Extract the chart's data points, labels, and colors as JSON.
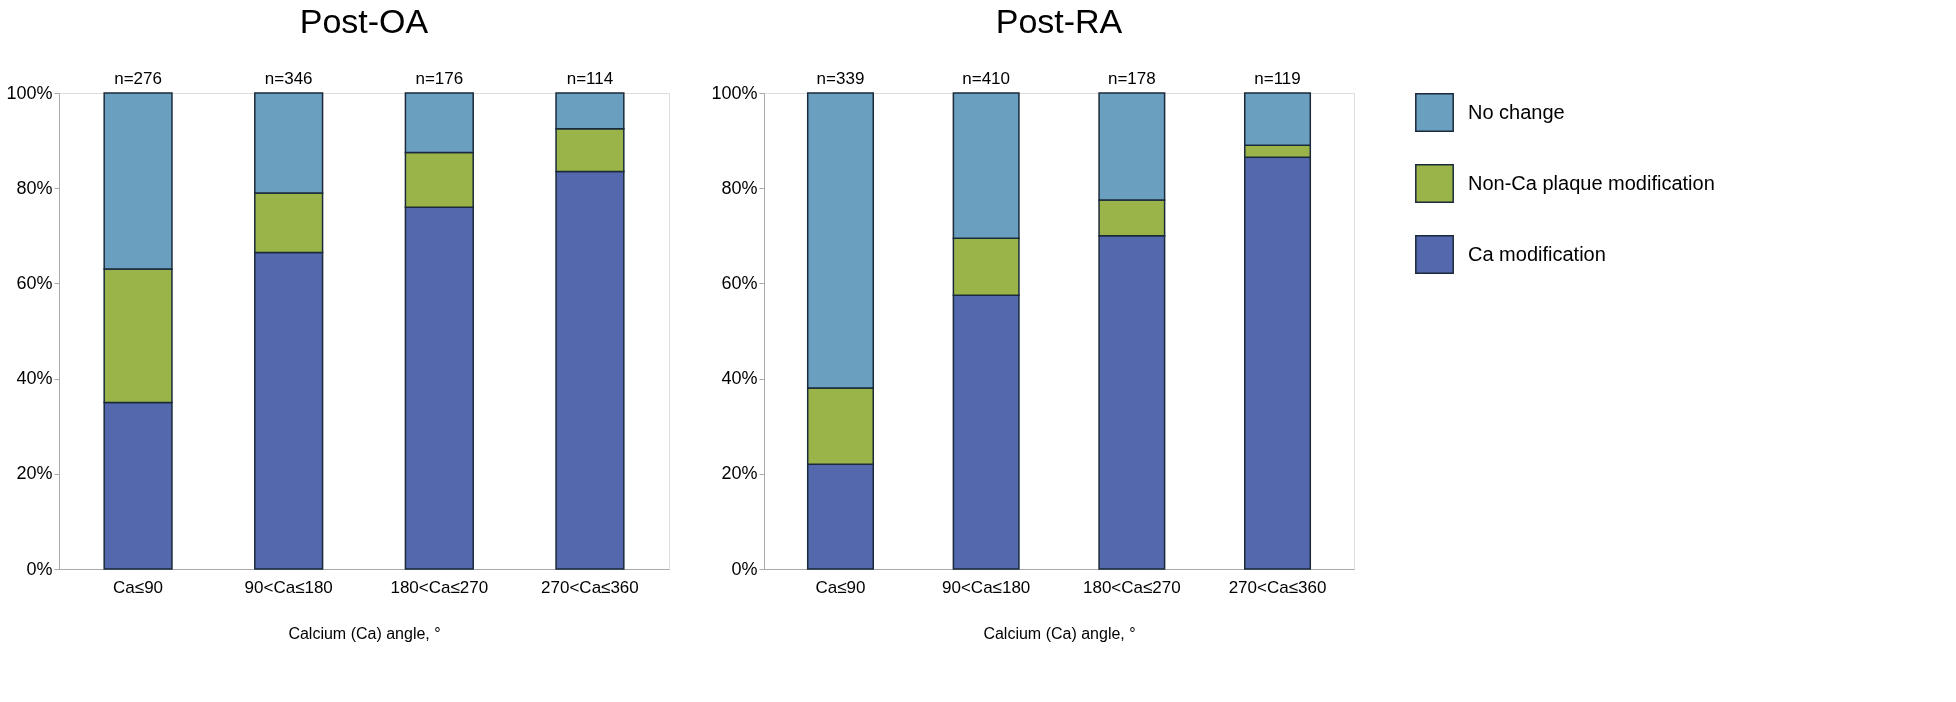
{
  "chart_data": [
    {
      "type": "bar",
      "title": "Post-OA",
      "xlabel": "Calcium (Ca) angle, °",
      "categories": [
        "Ca≤90",
        "90<Ca≤180",
        "180<Ca≤270",
        "270<Ca≤360"
      ],
      "stacked": true,
      "series": [
        {
          "name": "Ca modification",
          "color": "#5468ad",
          "values": [
            35,
            66.5,
            76,
            83.5
          ]
        },
        {
          "name": "Non-Ca plaque modification",
          "color": "#9ab44a",
          "values": [
            28,
            12.5,
            11.5,
            9
          ]
        },
        {
          "name": "No change",
          "color": "#6a9fc0",
          "values": [
            37,
            21,
            12.5,
            7.5
          ]
        }
      ],
      "annotations": [
        {
          "text": "n=276",
          "x": "Ca≤90",
          "y": 100
        },
        {
          "text": "n=346",
          "x": "90<Ca≤180",
          "y": 100
        },
        {
          "text": "n=176",
          "x": "180<Ca≤270",
          "y": 100
        },
        {
          "text": "n=114",
          "x": "270<Ca≤360",
          "y": 100
        }
      ],
      "ylim": [
        0,
        100
      ],
      "yticks": [
        {
          "value": 0,
          "label": "0%"
        },
        {
          "value": 20,
          "label": "20%"
        },
        {
          "value": 40,
          "label": "40%"
        },
        {
          "value": 60,
          "label": "60%"
        },
        {
          "value": 80,
          "label": "80%"
        },
        {
          "value": 100,
          "label": "100%"
        }
      ],
      "grid": false,
      "legend": "right"
    },
    {
      "type": "bar",
      "title": "Post-RA",
      "xlabel": "Calcium (Ca) angle, °",
      "categories": [
        "Ca≤90",
        "90<Ca≤180",
        "180<Ca≤270",
        "270<Ca≤360"
      ],
      "stacked": true,
      "series": [
        {
          "name": "Ca modification",
          "color": "#5468ad",
          "values": [
            22,
            57.5,
            70,
            86.5
          ]
        },
        {
          "name": "Non-Ca plaque modification",
          "color": "#9ab44a",
          "values": [
            16,
            12,
            7.5,
            2.5
          ]
        },
        {
          "name": "No change",
          "color": "#6a9fc0",
          "values": [
            62,
            30.5,
            22.5,
            11
          ]
        }
      ],
      "annotations": [
        {
          "text": "n=339",
          "x": "Ca≤90",
          "y": 100
        },
        {
          "text": "n=410",
          "x": "90<Ca≤180",
          "y": 100
        },
        {
          "text": "n=178",
          "x": "180<Ca≤270",
          "y": 100
        },
        {
          "text": "n=119",
          "x": "270<Ca≤360",
          "y": 100
        }
      ],
      "ylim": [
        0,
        100
      ],
      "yticks": [
        {
          "value": 0,
          "label": "0%"
        },
        {
          "value": 20,
          "label": "20%"
        },
        {
          "value": 40,
          "label": "40%"
        },
        {
          "value": 60,
          "label": "60%"
        },
        {
          "value": 80,
          "label": "80%"
        },
        {
          "value": 100,
          "label": "100%"
        }
      ],
      "grid": false,
      "legend": "right"
    }
  ]
}
